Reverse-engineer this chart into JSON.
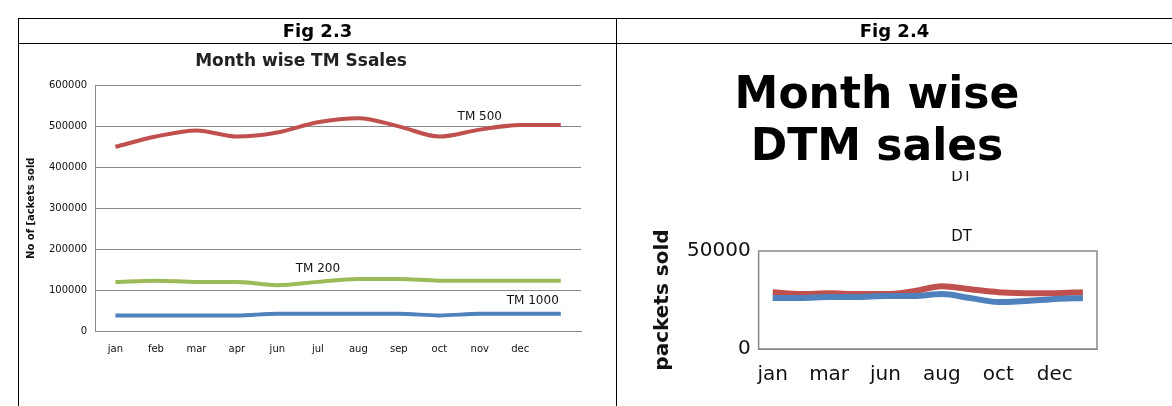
{
  "chart_data": [
    {
      "type": "line",
      "title": "Month wise TM Ssales",
      "ylabel": "No of [ackets sold",
      "annotations": [
        "Fig 2.3"
      ],
      "categories": [
        "jan",
        "feb",
        "mar",
        "apr",
        "jun",
        "jul",
        "aug",
        "sep",
        "oct",
        "nov",
        "dec",
        null
      ],
      "series": [
        {
          "name": "TM 500",
          "color": "#c0504d",
          "values": [
            450000,
            475000,
            490000,
            475000,
            485000,
            510000,
            520000,
            500000,
            475000,
            492000,
            503000,
            503000
          ]
        },
        {
          "name": "TM 200",
          "color": "#9bbb59",
          "values": [
            120000,
            123000,
            120000,
            120000,
            112000,
            120000,
            127000,
            127000,
            123000,
            123000,
            123000,
            123000
          ]
        },
        {
          "name": "TM 1000",
          "color": "#4f81bd",
          "values": [
            38000,
            38000,
            38000,
            38000,
            42000,
            42000,
            42000,
            42000,
            38000,
            42000,
            42000,
            42000
          ]
        }
      ],
      "ylim": [
        0,
        600000
      ],
      "yticks": [
        0,
        100000,
        200000,
        300000,
        400000,
        500000,
        600000
      ],
      "grid": "y",
      "legend": false,
      "marker": "none",
      "line_style": "solid"
    },
    {
      "type": "line",
      "title": "Month wise DTM sales",
      "ylabel": "packets sold",
      "annotations": [
        "Fig 2.4",
        "DT",
        "DT"
      ],
      "categories": [
        "jan",
        null,
        "mar",
        null,
        "jun",
        null,
        "aug",
        null,
        "oct",
        null,
        "dec",
        null
      ],
      "series": [
        {
          "color": "#4f81bd",
          "values": [
            26000,
            26000,
            26500,
            26500,
            27000,
            27000,
            28000,
            26000,
            24000,
            24500,
            25500,
            26000
          ]
        },
        {
          "color": "#c0504d",
          "values": [
            29000,
            28000,
            28500,
            28000,
            28000,
            29500,
            32000,
            30500,
            29000,
            28500,
            28500,
            29000
          ]
        }
      ],
      "ylim": [
        0,
        50000
      ],
      "yticks": [
        0,
        50000
      ],
      "grid": false,
      "legend": false,
      "marker": "none",
      "line_style": "solid"
    }
  ]
}
